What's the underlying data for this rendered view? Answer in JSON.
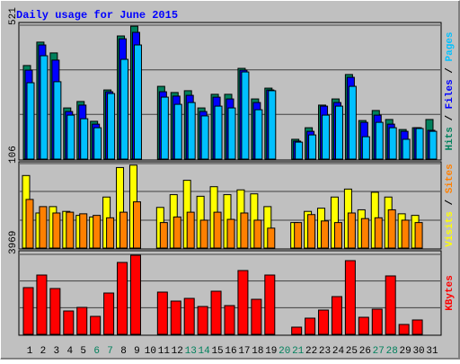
{
  "chart_data": [
    {
      "type": "bar",
      "title": "Daily usage for June 2015",
      "ylim": [
        0,
        521
      ],
      "yticks": [
        521
      ],
      "grid_lines": [
        174,
        347
      ],
      "series": [
        {
          "name": "Hits",
          "color": "#00805c",
          "values": [
            364,
            455,
            413,
            199,
            224,
            147,
            269,
            479,
            517,
            0,
            283,
            259,
            266,
            199,
            252,
            252,
            353,
            234,
            276,
            0,
            77,
            122,
            210,
            234,
            329,
            150,
            189,
            154,
            115,
            122,
            154
          ]
        },
        {
          "name": "Files",
          "color": "#0000ff",
          "values": [
            346,
            444,
            385,
            185,
            210,
            136,
            262,
            468,
            493,
            0,
            262,
            245,
            248,
            185,
            241,
            234,
            346,
            220,
            269,
            0,
            70,
            108,
            206,
            220,
            318,
            143,
            171,
            136,
            108,
            122,
            112
          ]
        },
        {
          "name": "Pages",
          "color": "#00c0ff",
          "values": [
            297,
            402,
            301,
            171,
            157,
            122,
            255,
            388,
            444,
            0,
            241,
            213,
            220,
            168,
            206,
            199,
            339,
            192,
            266,
            0,
            66,
            94,
            171,
            206,
            283,
            87,
            143,
            122,
            77,
            119,
            108
          ]
        }
      ]
    },
    {
      "type": "bar",
      "ylim": [
        0,
        106
      ],
      "yticks": [
        106
      ],
      "grid_lines": [
        35,
        71
      ],
      "series": [
        {
          "name": "Visits",
          "color": "#ffff00",
          "values": [
            91,
            44,
            52,
            46,
            41,
            39,
            64,
            101,
            104,
            0,
            51,
            67,
            85,
            65,
            77,
            67,
            73,
            68,
            52,
            0,
            32,
            46,
            50,
            64,
            74,
            48,
            70,
            64,
            43,
            41,
            0
          ]
        },
        {
          "name": "Sites",
          "color": "#ff8000",
          "values": [
            61,
            52,
            44,
            45,
            43,
            41,
            38,
            45,
            58,
            0,
            32,
            39,
            45,
            35,
            45,
            36,
            44,
            35,
            25,
            0,
            32,
            42,
            34,
            32,
            44,
            37,
            38,
            48,
            35,
            32,
            0
          ]
        }
      ]
    },
    {
      "type": "bar",
      "ylim": [
        0,
        3969
      ],
      "yticks": [
        3969
      ],
      "grid_lines": [
        1323,
        2646
      ],
      "categories": [
        "1",
        "2",
        "3",
        "4",
        "5",
        "6",
        "7",
        "8",
        "9",
        "10",
        "11",
        "12",
        "13",
        "14",
        "15",
        "16",
        "17",
        "18",
        "19",
        "20",
        "21",
        "22",
        "23",
        "24",
        "25",
        "26",
        "27",
        "28",
        "29",
        "30",
        "31"
      ],
      "weekend_categories": [
        "6",
        "7",
        "13",
        "14",
        "20",
        "21",
        "27",
        "28"
      ],
      "weekend_color": "#00805c",
      "series": [
        {
          "name": "KBytes",
          "color": "#ff0000",
          "values": [
            2319,
            2943,
            2274,
            1160,
            1338,
            892,
            2051,
            3568,
            3924,
            0,
            2096,
            1650,
            1784,
            1382,
            2140,
            1427,
            3166,
            1739,
            2943,
            0,
            357,
            803,
            1204,
            1873,
            3657,
            847,
            1249,
            2899,
            491,
            714,
            0
          ]
        }
      ]
    }
  ]
}
